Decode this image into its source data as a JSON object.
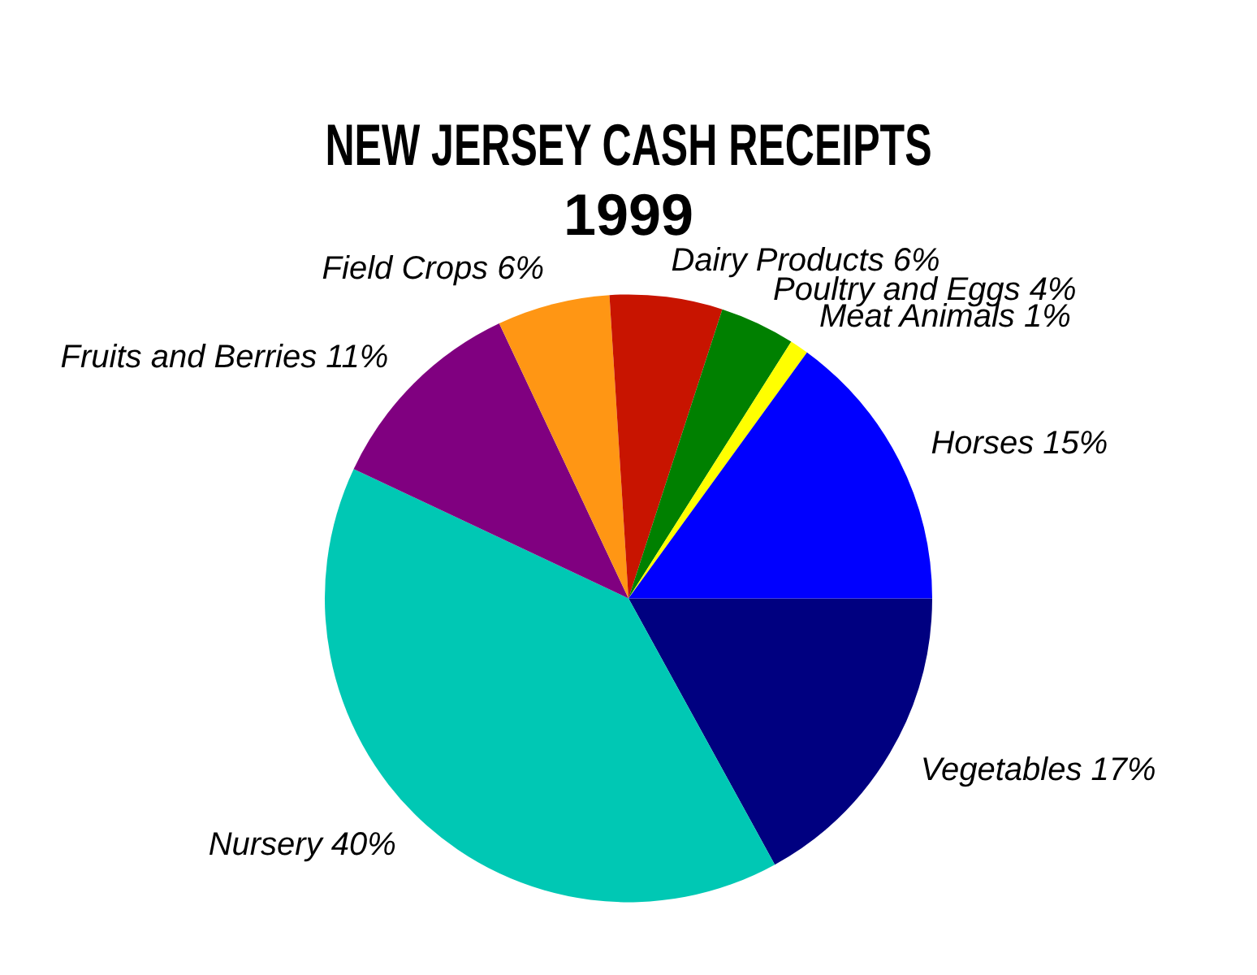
{
  "chart_data": {
    "type": "pie",
    "title": [
      "NEW JERSEY CASH RECEIPTS",
      "1999"
    ],
    "categories": [
      "Vegetables",
      "Nursery",
      "Fruits and Berries",
      "Field Crops",
      "Dairy Products",
      "Poultry and Eggs",
      "Meat Animals",
      "Horses"
    ],
    "values": [
      17,
      40,
      11,
      6,
      6,
      4,
      1,
      15
    ],
    "value_labels": [
      "17%",
      "40%",
      "11%",
      "6%",
      "6%",
      "4%",
      "1%",
      "15%"
    ],
    "colors": [
      "#000080",
      "#00c8b4",
      "#800080",
      "#ff9614",
      "#c81400",
      "#008000",
      "#ffff00",
      "#0000ff"
    ],
    "legend": false
  }
}
